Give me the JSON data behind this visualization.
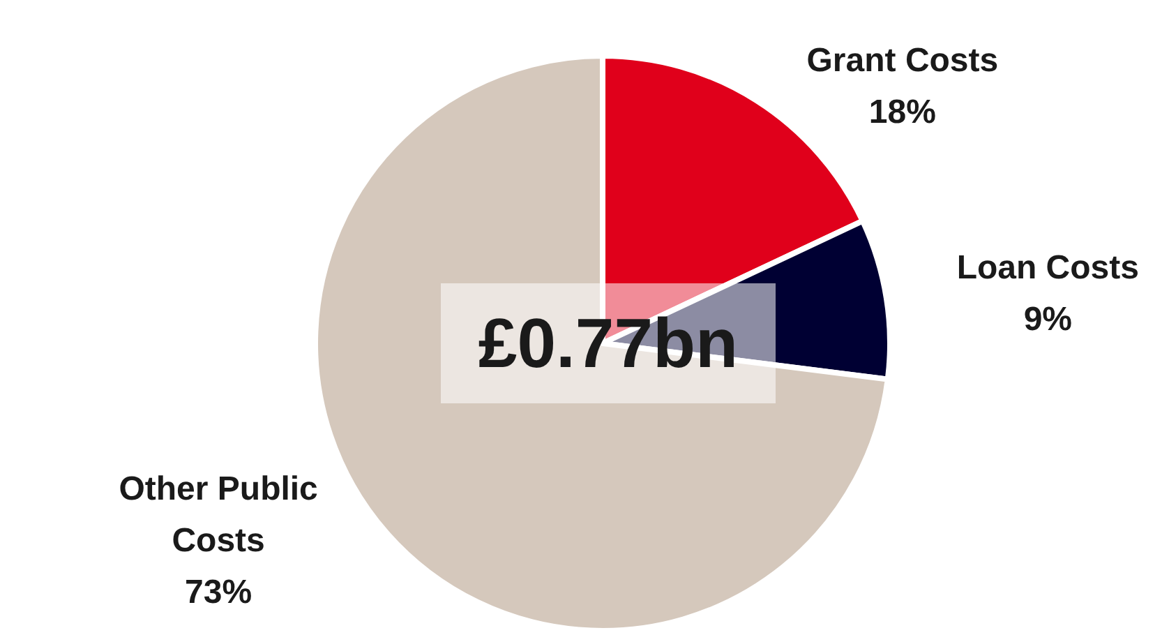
{
  "chart_data": {
    "type": "pie",
    "categories": [
      "Grant Costs",
      "Loan Costs",
      "Other Public Costs"
    ],
    "values": [
      18,
      9,
      73
    ],
    "colors": [
      "#e0001b",
      "#000033",
      "#d5c8bc"
    ],
    "value_labels": [
      "18%",
      "9%",
      "73%"
    ],
    "annotations": [
      "£0.77bn"
    ]
  }
}
